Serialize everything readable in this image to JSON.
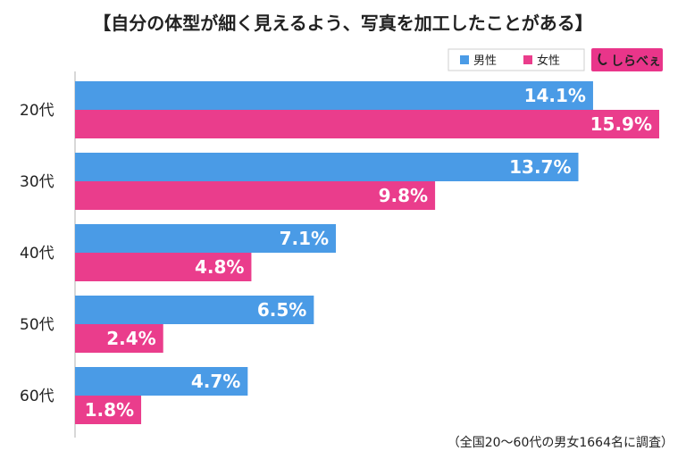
{
  "title": "【自分の体型が細く見えるよう、写真を加工したことがある】",
  "footnote": "（全国20～60代の男女1664名に調査）",
  "logo": {
    "text": "しらべぇ"
  },
  "colors": {
    "male": "#4a9be6",
    "female": "#ea3d8c",
    "axis": "#b0b0b0"
  },
  "chart_data": {
    "type": "bar",
    "orientation": "horizontal",
    "categories": [
      "20代",
      "30代",
      "40代",
      "50代",
      "60代"
    ],
    "series": [
      {
        "name": "男性",
        "values": [
          14.1,
          13.7,
          7.1,
          6.5,
          4.7
        ]
      },
      {
        "name": "女性",
        "values": [
          15.9,
          9.8,
          4.8,
          2.4,
          1.8
        ]
      }
    ],
    "value_suffix": "%",
    "xlim": [
      0,
      15.9
    ],
    "legend": "top-right",
    "grid": false
  }
}
